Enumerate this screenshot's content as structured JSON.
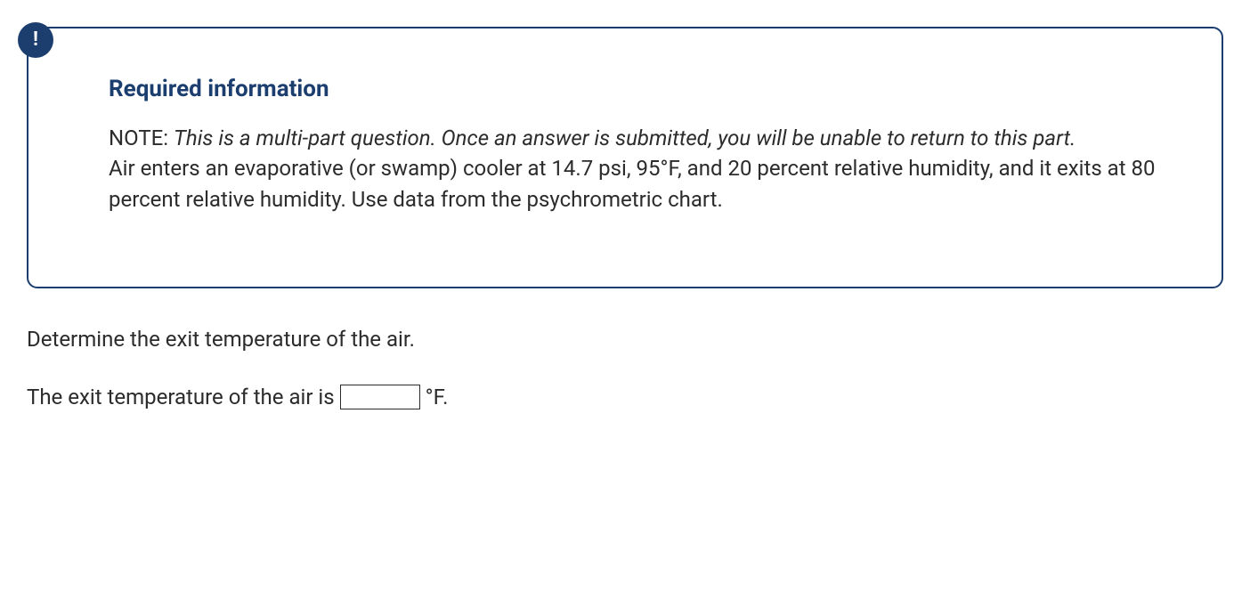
{
  "infoBox": {
    "alertSymbol": "!",
    "title": "Required information",
    "noteLabel": "NOTE: ",
    "noteItalic": "This is a multi-part question. Once an answer is submitted, you will be unable to return to this part.",
    "problemStatement": "Air enters an evaporative (or swamp) cooler at 14.7 psi, 95°F, and 20 percent relative humidity, and it exits at 80 percent relative humidity. Use data from the psychrometric chart."
  },
  "question": {
    "prompt": "Determine the exit temperature of the air.",
    "answerPrefix": "The exit temperature of the air is",
    "answerValue": "",
    "answerUnit": "°F."
  },
  "colors": {
    "primary": "#1b3e6f",
    "text": "#2c2c2c",
    "background": "#ffffff"
  }
}
